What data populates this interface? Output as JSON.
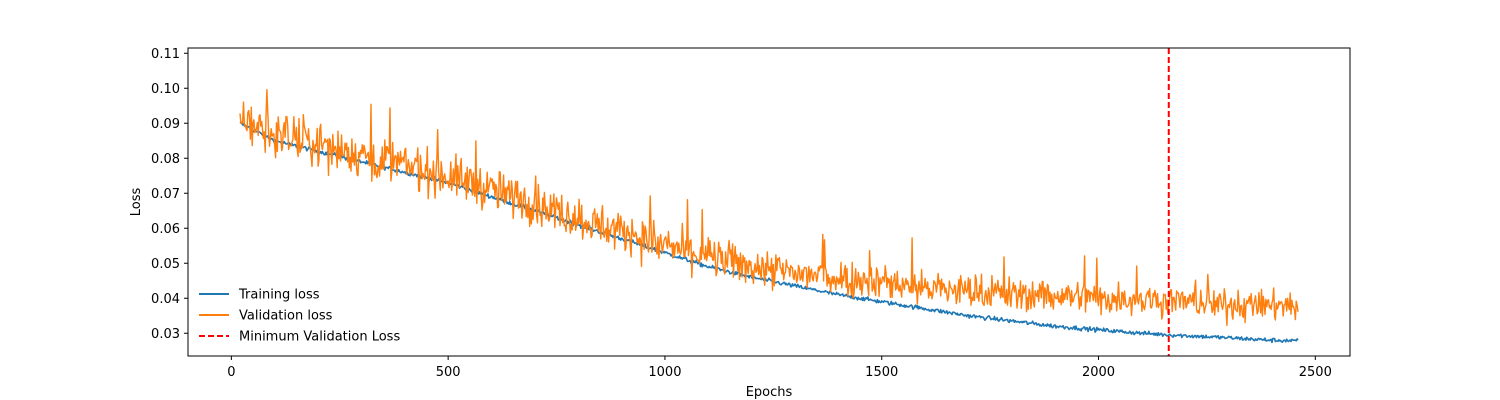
{
  "chart_data": {
    "type": "line",
    "title": "",
    "xlabel": "Epochs",
    "ylabel": "Loss",
    "xlim": [
      -100,
      2580
    ],
    "ylim": [
      0.0235,
      0.1115
    ],
    "xticks": [
      0,
      500,
      1000,
      1500,
      2000,
      2500
    ],
    "xtick_labels": [
      "0",
      "500",
      "1000",
      "1500",
      "2000",
      "2500"
    ],
    "yticks": [
      0.03,
      0.04,
      0.05,
      0.06,
      0.07,
      0.08,
      0.09,
      0.1,
      0.11
    ],
    "ytick_labels": [
      "0.03",
      "0.04",
      "0.05",
      "0.06",
      "0.07",
      "0.08",
      "0.09",
      "0.10",
      "0.11"
    ],
    "grid": false,
    "legend_position": "lower-left",
    "series": [
      {
        "name": "Training loss",
        "color": "#1f77b4",
        "style": "solid",
        "x": [
          20,
          100,
          200,
          300,
          400,
          500,
          600,
          700,
          800,
          900,
          1000,
          1100,
          1200,
          1300,
          1400,
          1500,
          1600,
          1700,
          1800,
          1900,
          2000,
          2100,
          2200,
          2300,
          2400,
          2460
        ],
        "values": [
          0.09,
          0.085,
          0.082,
          0.079,
          0.076,
          0.073,
          0.069,
          0.065,
          0.061,
          0.057,
          0.053,
          0.049,
          0.046,
          0.0435,
          0.041,
          0.039,
          0.037,
          0.035,
          0.0335,
          0.032,
          0.031,
          0.03,
          0.0293,
          0.0287,
          0.028,
          0.0278
        ]
      },
      {
        "name": "Validation loss",
        "color": "#ff7f0e",
        "style": "solid",
        "x": [
          20,
          100,
          200,
          300,
          400,
          500,
          600,
          700,
          800,
          900,
          1000,
          1100,
          1200,
          1300,
          1400,
          1500,
          1600,
          1700,
          1800,
          1900,
          2000,
          2100,
          2200,
          2300,
          2400,
          2460
        ],
        "values": [
          0.091,
          0.087,
          0.084,
          0.081,
          0.078,
          0.075,
          0.071,
          0.067,
          0.063,
          0.059,
          0.055,
          0.052,
          0.049,
          0.047,
          0.046,
          0.045,
          0.043,
          0.042,
          0.041,
          0.041,
          0.04,
          0.04,
          0.039,
          0.038,
          0.038,
          0.038
        ]
      }
    ],
    "vlines": [
      {
        "name": "Minimum Validation Loss",
        "x": 2162,
        "color": "#ff0000",
        "style": "dashed"
      }
    ]
  }
}
